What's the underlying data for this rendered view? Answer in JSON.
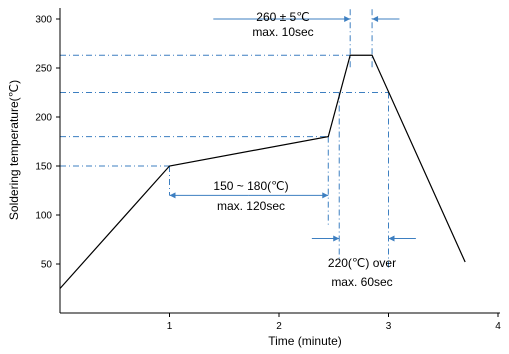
{
  "chart_data": {
    "type": "line",
    "title": "",
    "xlabel": "Time (minute)",
    "ylabel": "Soldering temperature(℃)",
    "xlim": [
      0,
      4.1
    ],
    "ylim": [
      0,
      310
    ],
    "x_ticks": [
      1,
      2,
      3,
      4
    ],
    "x_tick_labels": [
      "1",
      "2",
      "3",
      "4"
    ],
    "y_ticks": [
      50,
      100,
      150,
      200,
      250,
      300
    ],
    "y_tick_labels": [
      "50",
      "100",
      "150",
      "200",
      "250",
      "300"
    ],
    "grid": false,
    "series": [
      {
        "name": "",
        "x": [
          0,
          1.0,
          2.45,
          2.65,
          2.85,
          3.7
        ],
        "y": [
          25,
          150,
          180,
          263,
          263,
          52
        ]
      }
    ],
    "reference_lines": {
      "horizontal": [
        150,
        180,
        225,
        263
      ],
      "vertical": [
        1.0,
        2.45,
        2.55,
        2.65,
        2.85,
        3.0
      ]
    },
    "annotations": {
      "peak": {
        "line1": "260 ± 5℃",
        "line2": "max. 10sec"
      },
      "preheat": {
        "line1": "150 ~ 180(℃)",
        "line2": "max. 120sec"
      },
      "reflow": {
        "line1": "220(℃) over",
        "line2": "max. 60sec"
      }
    },
    "colors": {
      "profile": "#000000",
      "guide": "#3d7fc1",
      "axis": "#000000"
    }
  }
}
